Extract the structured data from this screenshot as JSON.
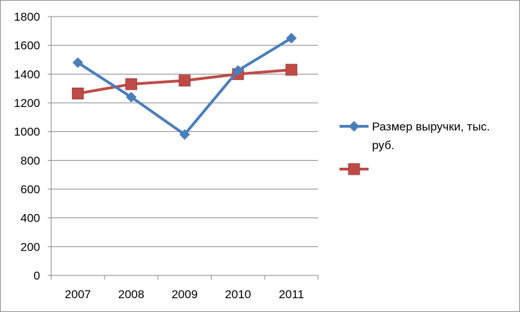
{
  "chart_data": {
    "type": "line",
    "title": "",
    "xlabel": "",
    "ylabel": "",
    "categories": [
      "2007",
      "2008",
      "2009",
      "2010",
      "2011"
    ],
    "ylim": [
      0,
      1800
    ],
    "yticks": [
      0,
      200,
      400,
      600,
      800,
      1000,
      1200,
      1400,
      1600,
      1800
    ],
    "grid": "horizontal",
    "legend_position": "right",
    "series": [
      {
        "name": "Размер выручки, тыс. руб.",
        "legend_lines": [
          "Размер выручки, тыс.",
          "руб."
        ],
        "values": [
          1480,
          1240,
          980,
          1425,
          1650
        ],
        "color": "#4a7ebb",
        "marker": "diamond"
      },
      {
        "name": "",
        "legend_lines": [],
        "values": [
          1265,
          1330,
          1355,
          1400,
          1430
        ],
        "color": "#be4b48",
        "marker": "square"
      }
    ]
  }
}
